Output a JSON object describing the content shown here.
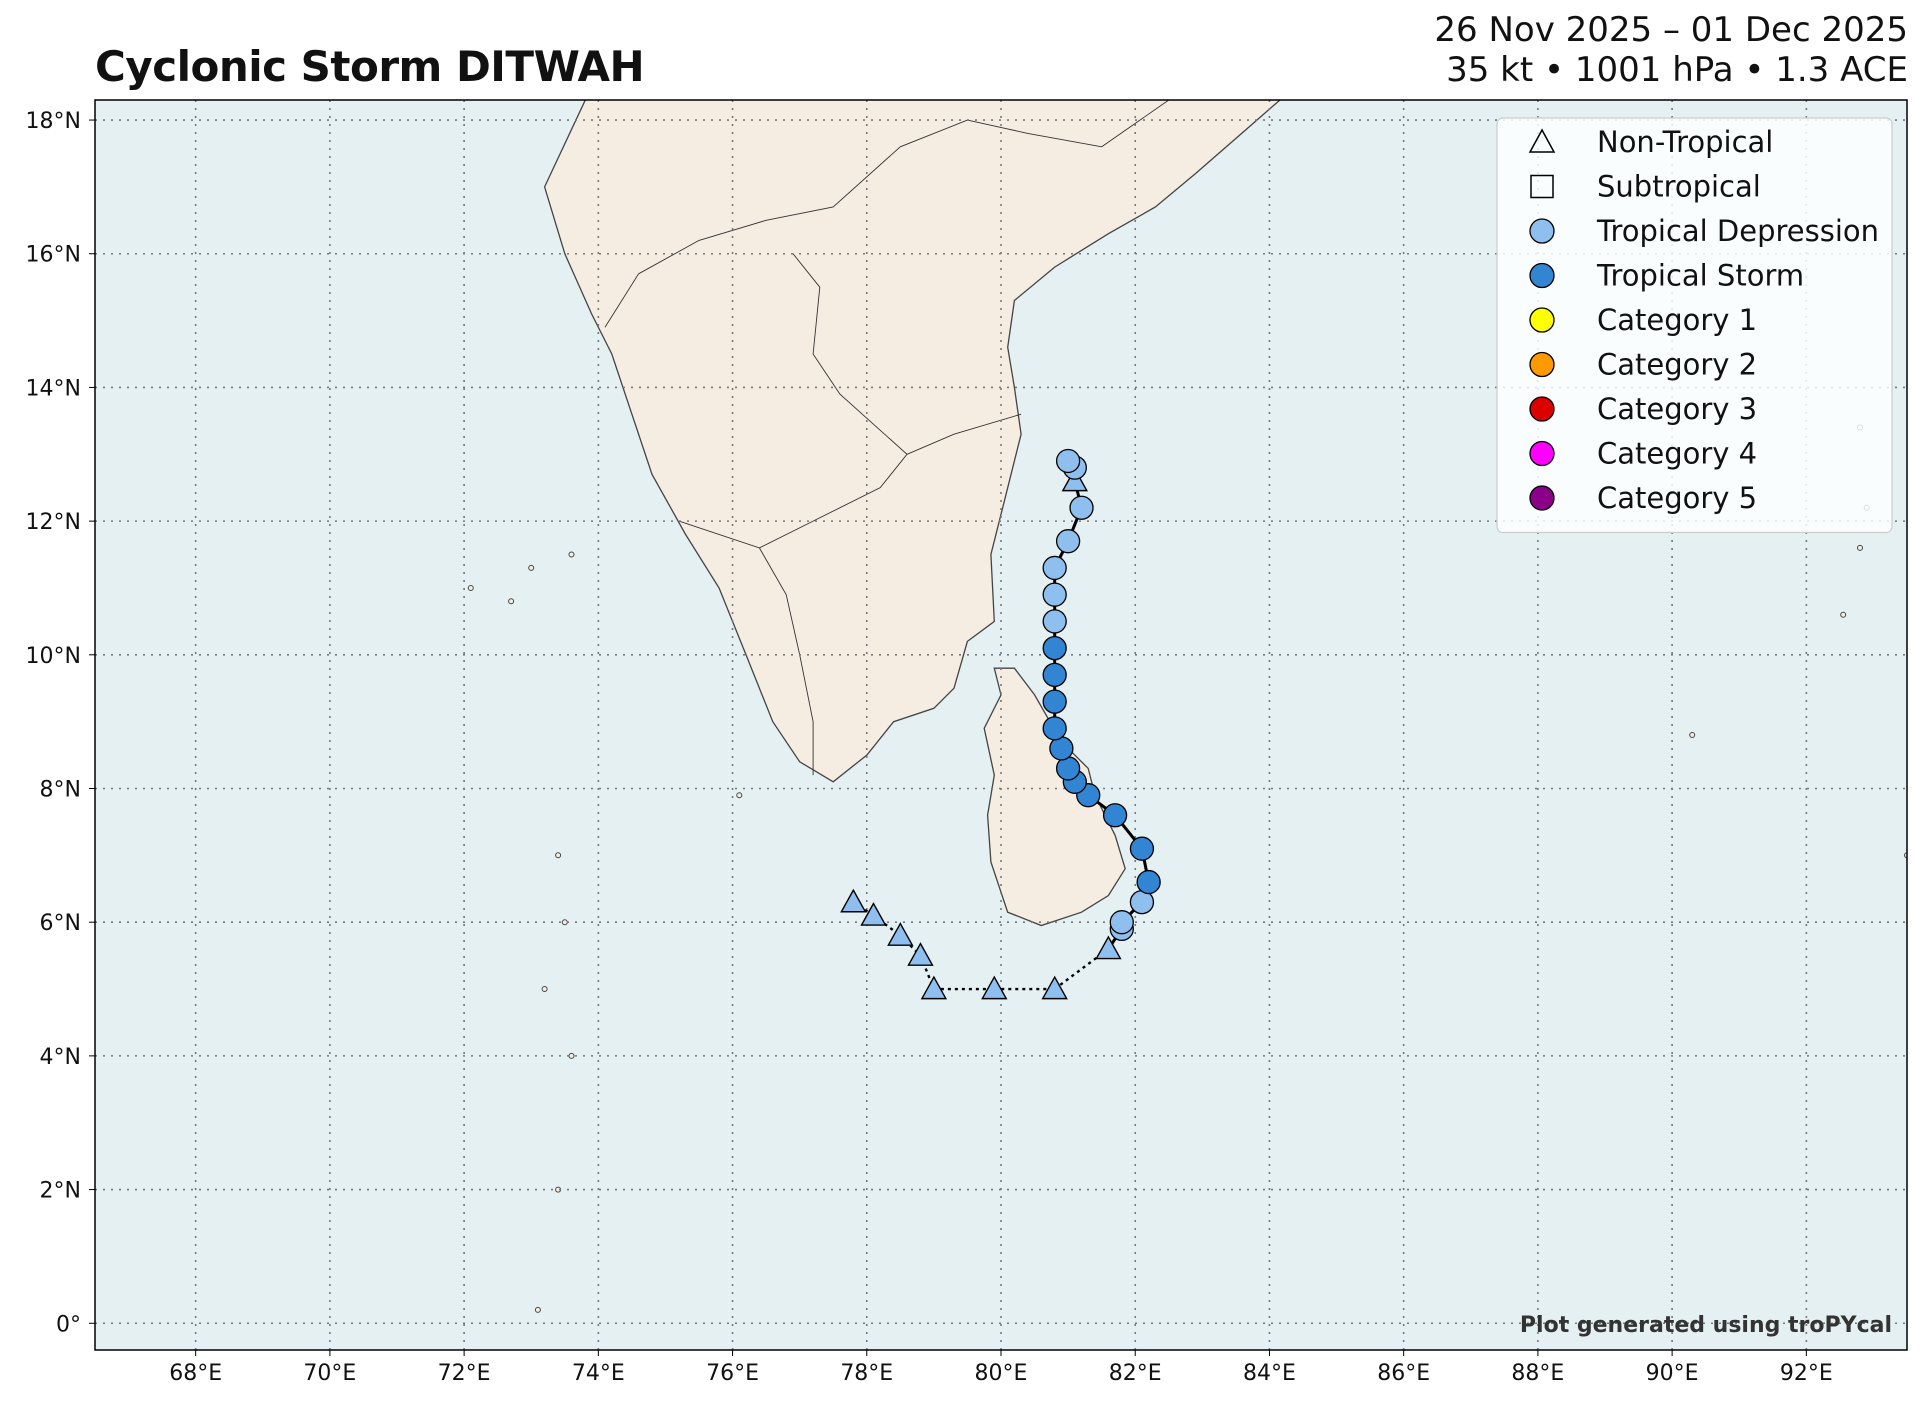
{
  "title": "Cyclonic Storm DITWAH",
  "date_range": "26 Nov 2025 – 01 Dec 2025",
  "storm_stats": "35 kt • 1001 hPa • 1.3 ACE",
  "credit": "Plot generated using troPYcal",
  "map": {
    "lon_range": [
      66.5,
      93.5
    ],
    "lat_range": [
      -0.4,
      18.3
    ],
    "lon_ticks": [
      {
        "value": 68,
        "label": "68°E"
      },
      {
        "value": 70,
        "label": "70°E"
      },
      {
        "value": 72,
        "label": "72°E"
      },
      {
        "value": 74,
        "label": "74°E"
      },
      {
        "value": 76,
        "label": "76°E"
      },
      {
        "value": 78,
        "label": "78°E"
      },
      {
        "value": 80,
        "label": "80°E"
      },
      {
        "value": 82,
        "label": "82°E"
      },
      {
        "value": 84,
        "label": "84°E"
      },
      {
        "value": 86,
        "label": "86°E"
      },
      {
        "value": 88,
        "label": "88°E"
      },
      {
        "value": 90,
        "label": "90°E"
      },
      {
        "value": 92,
        "label": "92°E"
      }
    ],
    "lat_ticks": [
      {
        "value": 0,
        "label": "0°"
      },
      {
        "value": 2,
        "label": "2°N"
      },
      {
        "value": 4,
        "label": "4°N"
      },
      {
        "value": 6,
        "label": "6°N"
      },
      {
        "value": 8,
        "label": "8°N"
      },
      {
        "value": 10,
        "label": "10°N"
      },
      {
        "value": 12,
        "label": "12°N"
      },
      {
        "value": 14,
        "label": "14°N"
      },
      {
        "value": 16,
        "label": "16°N"
      },
      {
        "value": 18,
        "label": "18°N"
      }
    ],
    "gridlines": true,
    "ocean_color": "#e4f0f1",
    "land_color": "#f5ede2",
    "coastline_color": "#444444"
  },
  "legend": {
    "placement": "top-right",
    "items": [
      {
        "label": "Non-Tropical",
        "marker": "triangle",
        "fill": "none"
      },
      {
        "label": "Subtropical",
        "marker": "square",
        "fill": "none"
      },
      {
        "label": "Tropical Depression",
        "marker": "circle",
        "fill": "#8fbfef"
      },
      {
        "label": "Tropical Storm",
        "marker": "circle",
        "fill": "#3185d3"
      },
      {
        "label": "Category 1",
        "marker": "circle",
        "fill": "#ffff00"
      },
      {
        "label": "Category 2",
        "marker": "circle",
        "fill": "#ff9900"
      },
      {
        "label": "Category 3",
        "marker": "circle",
        "fill": "#dd0000"
      },
      {
        "label": "Category 4",
        "marker": "circle",
        "fill": "#ff00fc"
      },
      {
        "label": "Category 5",
        "marker": "circle",
        "fill": "#8b0088"
      }
    ]
  },
  "track": [
    {
      "lon": 77.8,
      "lat": 6.3,
      "type": "non-tropical"
    },
    {
      "lon": 78.1,
      "lat": 6.1,
      "type": "non-tropical"
    },
    {
      "lon": 78.5,
      "lat": 5.8,
      "type": "non-tropical"
    },
    {
      "lon": 78.8,
      "lat": 5.5,
      "type": "non-tropical"
    },
    {
      "lon": 79.0,
      "lat": 5.0,
      "type": "non-tropical"
    },
    {
      "lon": 79.9,
      "lat": 5.0,
      "type": "non-tropical"
    },
    {
      "lon": 80.8,
      "lat": 5.0,
      "type": "non-tropical"
    },
    {
      "lon": 81.6,
      "lat": 5.6,
      "type": "non-tropical"
    },
    {
      "lon": 81.8,
      "lat": 5.9,
      "type": "tropical-depression"
    },
    {
      "lon": 81.8,
      "lat": 6.0,
      "type": "tropical-depression"
    },
    {
      "lon": 82.1,
      "lat": 6.3,
      "type": "tropical-depression"
    },
    {
      "lon": 82.2,
      "lat": 6.6,
      "type": "tropical-storm"
    },
    {
      "lon": 82.1,
      "lat": 7.1,
      "type": "tropical-storm"
    },
    {
      "lon": 81.7,
      "lat": 7.6,
      "type": "tropical-storm"
    },
    {
      "lon": 81.3,
      "lat": 7.9,
      "type": "tropical-storm"
    },
    {
      "lon": 81.1,
      "lat": 8.1,
      "type": "tropical-storm"
    },
    {
      "lon": 81.0,
      "lat": 8.3,
      "type": "tropical-storm"
    },
    {
      "lon": 80.9,
      "lat": 8.6,
      "type": "tropical-storm"
    },
    {
      "lon": 80.8,
      "lat": 8.9,
      "type": "tropical-storm"
    },
    {
      "lon": 80.8,
      "lat": 9.3,
      "type": "tropical-storm"
    },
    {
      "lon": 80.8,
      "lat": 9.7,
      "type": "tropical-storm"
    },
    {
      "lon": 80.8,
      "lat": 10.1,
      "type": "tropical-storm"
    },
    {
      "lon": 80.8,
      "lat": 10.5,
      "type": "tropical-depression"
    },
    {
      "lon": 80.8,
      "lat": 10.9,
      "type": "tropical-depression"
    },
    {
      "lon": 80.8,
      "lat": 11.3,
      "type": "tropical-depression"
    },
    {
      "lon": 81.0,
      "lat": 11.7,
      "type": "tropical-depression"
    },
    {
      "lon": 81.2,
      "lat": 12.2,
      "type": "tropical-depression"
    },
    {
      "lon": 81.1,
      "lat": 12.6,
      "type": "non-tropical"
    },
    {
      "lon": 81.1,
      "lat": 12.8,
      "type": "tropical-depression"
    },
    {
      "lon": 81.0,
      "lat": 12.9,
      "type": "tropical-depression"
    }
  ],
  "colors": {
    "non-tropical": "#8fbfef",
    "tropical-depression": "#8fbfef",
    "tropical-storm": "#3185d3"
  }
}
